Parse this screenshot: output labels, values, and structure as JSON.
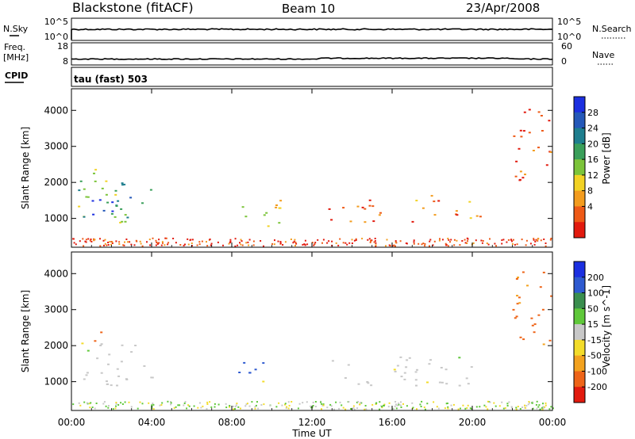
{
  "header": {
    "title": "Blackstone (fitACF)",
    "beam": "Beam 10",
    "date": "23/Apr/2008"
  },
  "top_panels": {
    "nsky_label": "N.Sky",
    "nsky_ticks": [
      "10^5",
      "10^0"
    ],
    "nsearch_label": "N.Search",
    "nsearch_ticks": [
      "10^5",
      "10^0"
    ],
    "freq_label": "Freq.",
    "freq_unit": "[MHz]",
    "freq_ticks": [
      "18",
      "8"
    ],
    "nave_label": "Nave",
    "nave_ticks": [
      "60",
      "0"
    ],
    "cpid_label": "CPID",
    "cpid_value": "tau (fast) 503"
  },
  "colors": {
    "power_scale": [
      "#1b2fe0",
      "#2458b8",
      "#1e7e8e",
      "#3a9f5a",
      "#7cc43a",
      "#f2d224",
      "#f39c1e",
      "#ee5a16",
      "#e21a0e"
    ],
    "velocity_scale": [
      "#1b2fe0",
      "#2e5ad0",
      "#3a8e4e",
      "#5fc83a",
      "#c8c8c8",
      "#f3dc2a",
      "#f3a21e",
      "#ee6418",
      "#e21a0e"
    ]
  },
  "chart_data": [
    {
      "type": "heatmap",
      "name": "power",
      "ylabel": "Slant Range [km]",
      "y_ticks": [
        1000,
        2000,
        3000,
        4000
      ],
      "ylim": [
        200,
        4600
      ],
      "xlim": [
        0,
        24
      ],
      "colorbar_label": "Power [dB]",
      "colorbar_ticks": [
        "28",
        "24",
        "20",
        "16",
        "12",
        "8",
        "4"
      ],
      "clim": [
        0,
        32
      ],
      "echo_regions": [
        {
          "t0": 0.3,
          "t1": 4.2,
          "r0": 900,
          "r1": 2100,
          "level": 0.55
        },
        {
          "t0": 0.4,
          "t1": 3.2,
          "r0": 950,
          "r1": 1600,
          "level": 0.9
        },
        {
          "t0": 1.0,
          "t1": 1.6,
          "r0": 2000,
          "r1": 2400,
          "level": 0.45
        },
        {
          "t0": 8.2,
          "t1": 10.4,
          "r0": 800,
          "r1": 1600,
          "level": 0.35
        },
        {
          "t0": 12.8,
          "t1": 20.8,
          "r0": 900,
          "r1": 1700,
          "level": 0.2
        },
        {
          "t0": 22.0,
          "t1": 23.9,
          "r0": 2000,
          "r1": 4200,
          "level": 0.15
        }
      ]
    },
    {
      "type": "heatmap",
      "name": "velocity",
      "ylabel": "Slant Range [km]",
      "y_ticks": [
        1000,
        2000,
        3000,
        4000
      ],
      "ylim": [
        200,
        4600
      ],
      "xlim": [
        0,
        24
      ],
      "colorbar_label": "Velocity [m s^-1]",
      "colorbar_ticks": [
        "200",
        "100",
        "50",
        "15",
        "-15",
        "-50",
        "-100",
        "-200"
      ],
      "clim": [
        -250,
        250
      ],
      "echo_regions": [
        {
          "t0": 0.3,
          "t1": 4.2,
          "r0": 900,
          "r1": 2100,
          "v": 0
        },
        {
          "t0": 1.0,
          "t1": 1.6,
          "r0": 2000,
          "r1": 2400,
          "v": -180
        },
        {
          "t0": 8.2,
          "t1": 9.6,
          "r0": 900,
          "r1": 1600,
          "v": 180
        },
        {
          "t0": 9.4,
          "t1": 10.4,
          "r0": 800,
          "r1": 1100,
          "v": -80
        },
        {
          "t0": 12.8,
          "t1": 20.8,
          "r0": 900,
          "r1": 1700,
          "v": 0
        },
        {
          "t0": 22.0,
          "t1": 23.9,
          "r0": 2000,
          "r1": 4200,
          "v": -150
        }
      ]
    }
  ],
  "x_axis": {
    "label": "Time UT",
    "ticks": [
      "00:00",
      "04:00",
      "08:00",
      "12:00",
      "16:00",
      "20:00",
      "00:00"
    ]
  }
}
